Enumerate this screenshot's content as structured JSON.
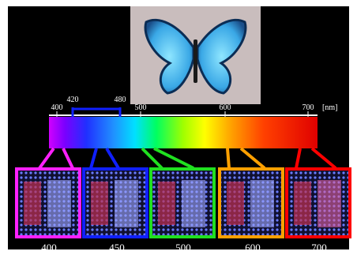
{
  "scale": {
    "ticks": [
      "400",
      "500",
      "600",
      "700"
    ],
    "unit": "[nm]",
    "range": [
      "420",
      "480"
    ]
  },
  "panels": [
    {
      "label": "400"
    },
    {
      "label": "450"
    },
    {
      "label": "500"
    },
    {
      "label": "600"
    },
    {
      "label": "700"
    }
  ]
}
